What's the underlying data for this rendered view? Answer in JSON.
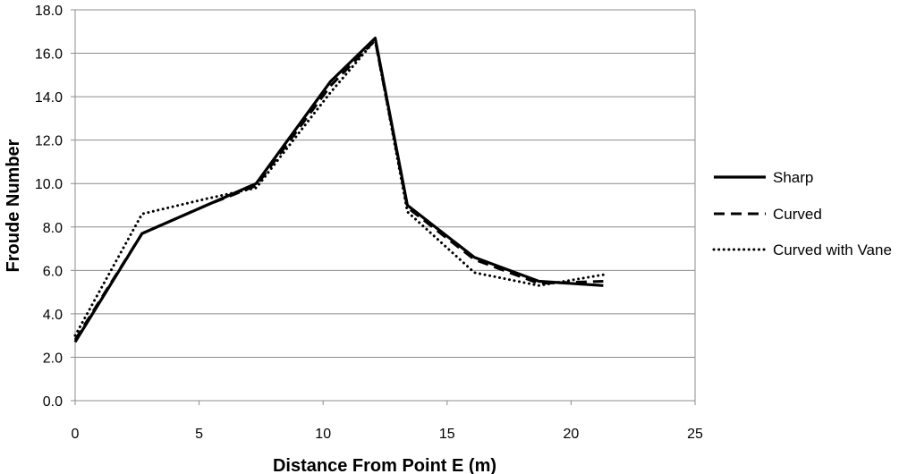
{
  "chart_data": {
    "type": "line",
    "title": "",
    "xlabel": "Distance From Point E (m)",
    "ylabel": "Froude Number",
    "xlim": [
      0,
      25
    ],
    "ylim": [
      0,
      18
    ],
    "x_ticks": [
      0,
      5,
      10,
      15,
      20,
      25
    ],
    "x_tick_labels": [
      "0",
      "5",
      "10",
      "15",
      "20",
      "25"
    ],
    "y_ticks": [
      0,
      2,
      4,
      6,
      8,
      10,
      12,
      14,
      16,
      18
    ],
    "y_tick_labels": [
      "0.0",
      "2.0",
      "4.0",
      "6.0",
      "8.0",
      "10.0",
      "12.0",
      "14.0",
      "16.0",
      "18.0"
    ],
    "grid": "horizontal",
    "legend_position": "right",
    "series": [
      {
        "name": "Sharp",
        "style": "solid",
        "color": "#000000",
        "x": [
          0,
          2.7,
          5.3,
          7.3,
          10.3,
          12.1,
          13.4,
          16.1,
          18.7,
          21.3
        ],
        "y": [
          2.7,
          7.7,
          9.0,
          10.0,
          14.7,
          16.7,
          9.0,
          6.6,
          5.5,
          5.3
        ]
      },
      {
        "name": "Curved",
        "style": "dashed",
        "color": "#000000",
        "x": [
          0,
          2.7,
          5.3,
          7.3,
          10.3,
          12.1,
          13.4,
          16.1,
          18.7,
          21.3
        ],
        "y": [
          2.8,
          7.7,
          9.0,
          9.9,
          14.5,
          16.6,
          8.9,
          6.5,
          5.4,
          5.5
        ]
      },
      {
        "name": "Curved with Vane",
        "style": "dotted",
        "color": "#000000",
        "x": [
          0,
          2.7,
          5.3,
          7.3,
          10.3,
          12.1,
          13.4,
          16.1,
          18.7,
          21.3
        ],
        "y": [
          3.0,
          8.6,
          9.3,
          9.8,
          14.2,
          16.6,
          8.7,
          5.9,
          5.3,
          5.8
        ]
      }
    ]
  }
}
